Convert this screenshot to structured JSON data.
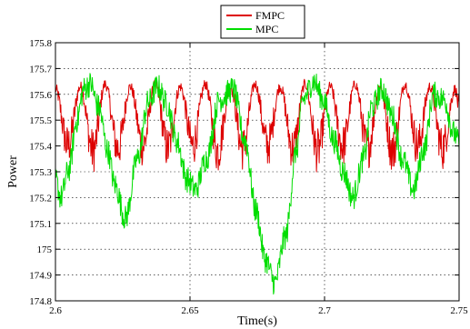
{
  "chart_data": {
    "type": "line",
    "title": "",
    "xlabel": "Time(s)",
    "ylabel": "Power",
    "xlim": [
      2.6,
      2.75
    ],
    "ylim": [
      174.8,
      175.8
    ],
    "x_ticks": [
      2.6,
      2.65,
      2.7,
      2.75
    ],
    "x_tick_labels": [
      "2.6",
      "2.65",
      "2.7",
      "2.75"
    ],
    "y_ticks": [
      174.8,
      174.9,
      175,
      175.1,
      175.2,
      175.3,
      175.4,
      175.5,
      175.6,
      175.7,
      175.8
    ],
    "y_tick_labels": [
      "174.8",
      "174.9",
      "175",
      "175.1",
      "175.2",
      "175.3",
      "175.4",
      "175.5",
      "175.6",
      "175.7",
      "175.8"
    ],
    "grid": true,
    "legend_position": "top-center, above plot",
    "series": [
      {
        "name": "FMPC",
        "color": "#dd0000",
        "description": "fast oscillation between ~175.37 and ~175.65, period ~0.0093 s",
        "x": [
          2.6,
          2.6046,
          2.6093,
          2.6139,
          2.6185,
          2.6232,
          2.6278,
          2.6325,
          2.6371,
          2.6417,
          2.6464,
          2.651,
          2.6557,
          2.6603,
          2.665,
          2.6696,
          2.6742,
          2.6789,
          2.6835,
          2.6882,
          2.6928,
          2.6974,
          2.7021,
          2.7067,
          2.7114,
          2.716,
          2.7206,
          2.7253,
          2.7299,
          2.7346,
          2.7392,
          2.7438,
          2.7485,
          2.75
        ],
        "y": [
          175.62,
          175.4,
          175.63,
          175.38,
          175.64,
          175.39,
          175.63,
          175.4,
          175.64,
          175.39,
          175.63,
          175.4,
          175.64,
          175.38,
          175.63,
          175.39,
          175.64,
          175.4,
          175.63,
          175.39,
          175.64,
          175.38,
          175.63,
          175.4,
          175.64,
          175.39,
          175.63,
          175.38,
          175.64,
          175.4,
          175.63,
          175.39,
          175.62,
          175.55
        ]
      },
      {
        "name": "MPC",
        "color": "#00dd00",
        "description": "slower oscillation with troughs of varying depth",
        "x": [
          2.6,
          2.602,
          2.605,
          2.608,
          2.6105,
          2.613,
          2.616,
          2.6195,
          2.622,
          2.626,
          2.6305,
          2.6345,
          2.638,
          2.6415,
          2.645,
          2.649,
          2.652,
          2.656,
          2.661,
          2.666,
          2.6705,
          2.6745,
          2.678,
          2.6815,
          2.6855,
          2.6895,
          2.692,
          2.696,
          2.6995,
          2.7035,
          2.707,
          2.7105,
          2.7145,
          2.7175,
          2.7215,
          2.725,
          2.729,
          2.733,
          2.737,
          2.7405,
          2.7445,
          2.748,
          2.75
        ],
        "y": [
          175.27,
          175.2,
          175.31,
          175.5,
          175.62,
          175.64,
          175.55,
          175.38,
          175.25,
          175.12,
          175.35,
          175.57,
          175.63,
          175.56,
          175.42,
          175.27,
          175.23,
          175.35,
          175.58,
          175.62,
          175.42,
          175.15,
          174.96,
          174.87,
          175.05,
          175.38,
          175.58,
          175.65,
          175.58,
          175.42,
          175.3,
          175.2,
          175.35,
          175.55,
          175.62,
          175.52,
          175.35,
          175.23,
          175.39,
          175.6,
          175.58,
          175.45,
          175.41
        ]
      }
    ]
  }
}
